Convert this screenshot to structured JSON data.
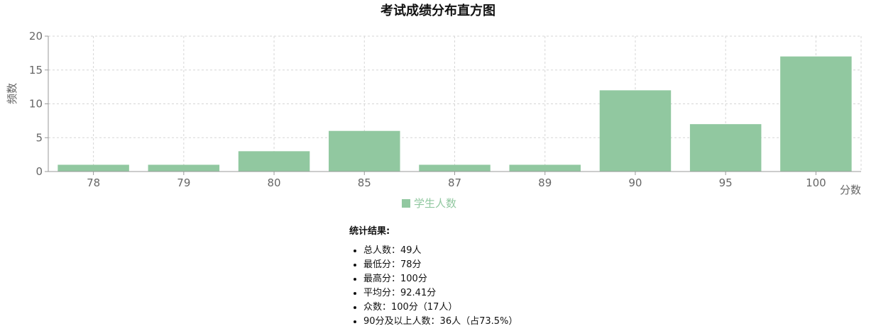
{
  "chart_data": {
    "type": "bar",
    "title": "考试成绩分布直方图",
    "xlabel": "分数",
    "ylabel": "频数",
    "categories": [
      "78",
      "79",
      "80",
      "85",
      "87",
      "89",
      "90",
      "95",
      "100"
    ],
    "series": [
      {
        "name": "学生人数",
        "values": [
          1,
          1,
          3,
          6,
          1,
          1,
          12,
          7,
          17
        ],
        "color": "#91c8a0"
      }
    ],
    "ylim": [
      0,
      20
    ],
    "yticks": [
      0,
      5,
      10,
      15,
      20
    ],
    "grid": true,
    "legend": "bottom-center"
  },
  "stats": {
    "heading": "统计结果:",
    "items": [
      "总人数：49人",
      "最低分：78分",
      "最高分：100分",
      "平均分：92.41分",
      "众数：100分（17人）",
      "90分及以上人数：36人（占73.5%）"
    ]
  },
  "colors": {
    "bar": "#91c8a0",
    "grid": "#d6d6d6",
    "axis": "#999999",
    "tick_text": "#666666"
  }
}
